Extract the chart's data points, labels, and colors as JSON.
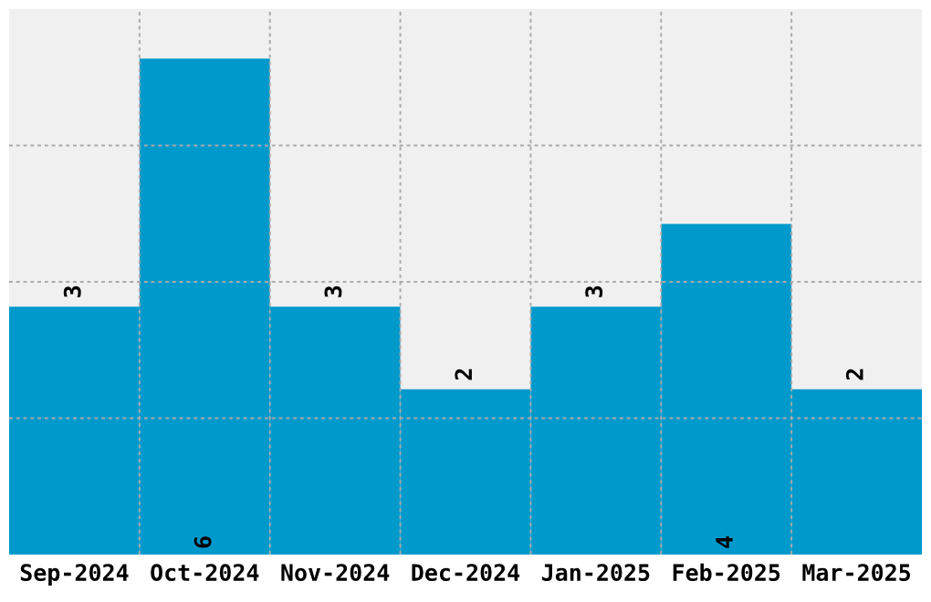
{
  "chart_data": {
    "type": "bar",
    "categories": [
      "Sep-2024",
      "Oct-2024",
      "Nov-2024",
      "Dec-2024",
      "Jan-2025",
      "Feb-2025",
      "Mar-2025"
    ],
    "values": [
      3,
      6,
      3,
      2,
      3,
      4,
      2
    ],
    "color": "#0099cc",
    "data_labels": true,
    "grid": true,
    "tick_labels": "x",
    "ylim": [
      0,
      6.6
    ],
    "yticks": [
      {
        "value": 1.65,
        "label": null
      },
      {
        "value": 3.3,
        "label": null
      },
      {
        "value": 4.95,
        "label": null
      }
    ]
  }
}
